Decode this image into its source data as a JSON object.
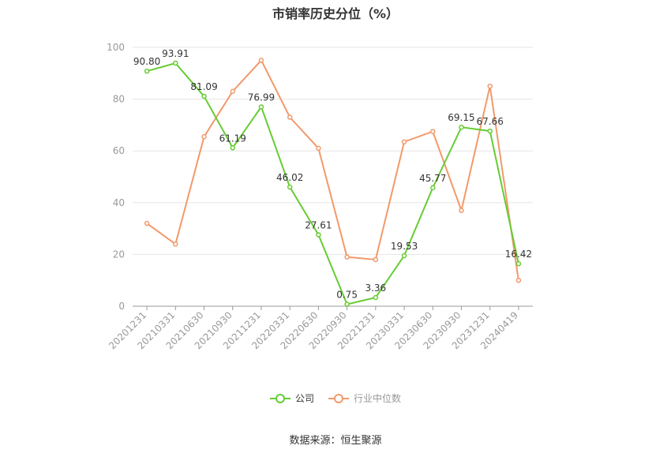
{
  "chart_data": {
    "type": "line",
    "title": "市销率历史分位（%）",
    "categories": [
      "20201231",
      "20210331",
      "20210630",
      "20210930",
      "20211231",
      "20220331",
      "20220630",
      "20220930",
      "20221231",
      "20230331",
      "20230630",
      "20230930",
      "20231231",
      "20240419"
    ],
    "series": [
      {
        "name": "公司",
        "color": "#66cc33",
        "values": [
          90.8,
          93.91,
          81.09,
          61.19,
          76.99,
          46.02,
          27.61,
          0.75,
          3.36,
          19.53,
          45.77,
          69.15,
          67.66,
          16.42
        ],
        "labels": [
          "90.80",
          "93.91",
          "81.09",
          "61.19",
          "76.99",
          "46.02",
          "27.61",
          "0.75",
          "3.36",
          "19.53",
          "45.77",
          "69.15",
          "67.66",
          "16.42"
        ]
      },
      {
        "name": "行业中位数",
        "color": "#f2996b",
        "values": [
          32,
          24,
          65.5,
          83,
          95,
          73,
          61,
          19,
          18,
          63.5,
          67.5,
          37,
          85,
          10
        ]
      }
    ],
    "ylim": [
      0,
      100
    ],
    "yticks": [
      "0",
      "20",
      "40",
      "60",
      "80",
      "100"
    ],
    "grid": true,
    "legend": "bottom"
  },
  "source": "数据来源：恒生聚源"
}
